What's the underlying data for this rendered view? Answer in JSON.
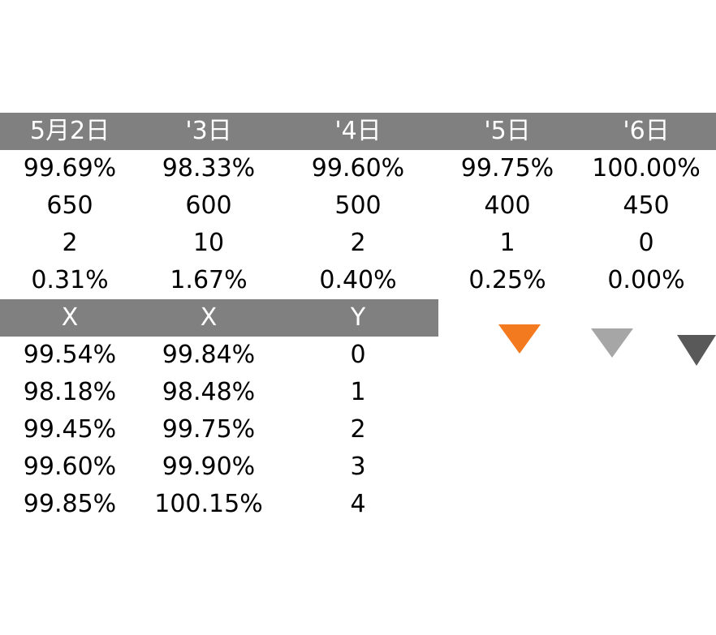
{
  "top_table": {
    "headers": [
      "5月2日",
      "'3日",
      "'4日",
      "'5日",
      "'6日"
    ],
    "rows": [
      [
        "99.69%",
        "98.33%",
        "99.60%",
        "99.75%",
        "100.00%"
      ],
      [
        "650",
        "600",
        "500",
        "400",
        "450"
      ],
      [
        "2",
        "10",
        "2",
        "1",
        "0"
      ],
      [
        "0.31%",
        "1.67%",
        "0.40%",
        "0.25%",
        "0.00%"
      ]
    ]
  },
  "bottom_table": {
    "headers": [
      "X",
      "X",
      "Y"
    ],
    "rows": [
      [
        "99.54%",
        "99.84%",
        "0"
      ],
      [
        "98.18%",
        "98.48%",
        "1"
      ],
      [
        "99.45%",
        "99.75%",
        "2"
      ],
      [
        "99.60%",
        "99.90%",
        "3"
      ],
      [
        "99.85%",
        "100.15%",
        "4"
      ]
    ]
  },
  "markers": [
    {
      "name": "orange-triangle",
      "color": "#F47A20"
    },
    {
      "name": "light-gray-triangle",
      "color": "#A6A6A6"
    },
    {
      "name": "dark-gray-triangle",
      "color": "#595959"
    }
  ]
}
